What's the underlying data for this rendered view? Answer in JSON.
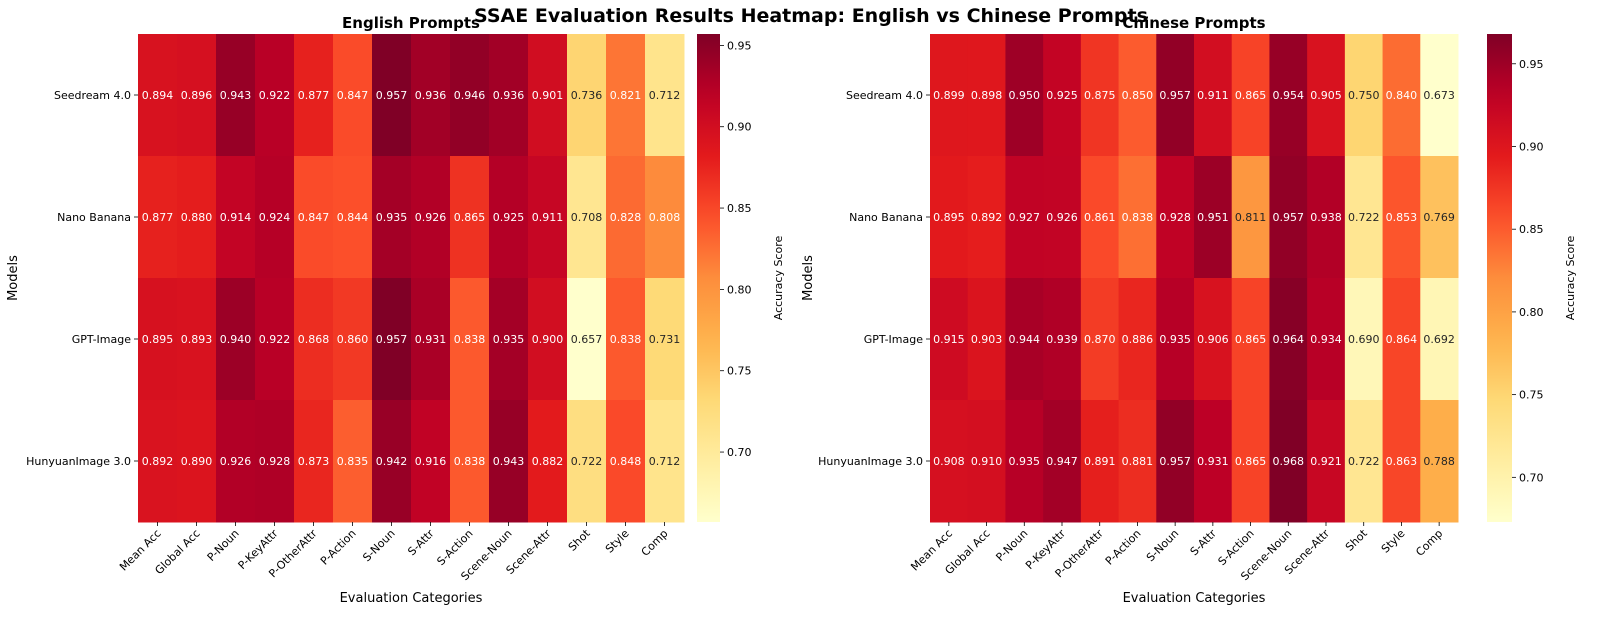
{
  "chart_data": {
    "type": "heatmap",
    "title": "SSAE Evaluation Results Heatmap: English vs Chinese Prompts",
    "colormap": [
      "#ffffcc",
      "#ffeda0",
      "#fed976",
      "#feb24c",
      "#fd8d3c",
      "#fc4e2a",
      "#e31a1c",
      "#bd0026",
      "#800026"
    ],
    "panels": [
      {
        "title": "English Prompts",
        "xlabel": "Evaluation Categories",
        "ylabel": "Models",
        "colorbar_label": "Accuracy Score",
        "vmin": 0.657,
        "vmax": 0.957,
        "colorbar_ticks": [
          "0.70",
          "0.75",
          "0.80",
          "0.85",
          "0.90",
          "0.95"
        ],
        "categories": [
          "Mean Acc",
          "Global Acc",
          "P-Noun",
          "P-KeyAttr",
          "P-OtherAttr",
          "P-Action",
          "S-Noun",
          "S-Attr",
          "S-Action",
          "Scene-Noun",
          "Scene-Attr",
          "Shot",
          "Style",
          "Comp"
        ],
        "models": [
          "Seedream 4.0",
          "Nano Banana",
          "GPT-Image",
          "HunyuanImage 3.0"
        ],
        "values": [
          [
            0.894,
            0.896,
            0.943,
            0.922,
            0.877,
            0.847,
            0.957,
            0.936,
            0.946,
            0.936,
            0.901,
            0.736,
            0.821,
            0.712
          ],
          [
            0.877,
            0.88,
            0.914,
            0.924,
            0.847,
            0.844,
            0.935,
            0.926,
            0.865,
            0.925,
            0.911,
            0.708,
            0.828,
            0.808
          ],
          [
            0.895,
            0.893,
            0.94,
            0.922,
            0.868,
            0.86,
            0.957,
            0.931,
            0.838,
            0.935,
            0.9,
            0.657,
            0.838,
            0.731
          ],
          [
            0.892,
            0.89,
            0.926,
            0.928,
            0.873,
            0.835,
            0.942,
            0.916,
            0.838,
            0.943,
            0.882,
            0.722,
            0.848,
            0.712
          ]
        ]
      },
      {
        "title": "Chinese Prompts",
        "xlabel": "Evaluation Categories",
        "ylabel": "Models",
        "colorbar_label": "Accuracy Score",
        "vmin": 0.673,
        "vmax": 0.968,
        "colorbar_ticks": [
          "0.70",
          "0.75",
          "0.80",
          "0.85",
          "0.90",
          "0.95"
        ],
        "categories": [
          "Mean Acc",
          "Global Acc",
          "P-Noun",
          "P-KeyAttr",
          "P-OtherAttr",
          "P-Action",
          "S-Noun",
          "S-Attr",
          "S-Action",
          "Scene-Noun",
          "Scene-Attr",
          "Shot",
          "Style",
          "Comp"
        ],
        "models": [
          "Seedream 4.0",
          "Nano Banana",
          "GPT-Image",
          "HunyuanImage 3.0"
        ],
        "values": [
          [
            0.899,
            0.898,
            0.95,
            0.925,
            0.875,
            0.85,
            0.957,
            0.911,
            0.865,
            0.954,
            0.905,
            0.75,
            0.84,
            0.673
          ],
          [
            0.895,
            0.892,
            0.927,
            0.926,
            0.861,
            0.838,
            0.928,
            0.951,
            0.811,
            0.957,
            0.938,
            0.722,
            0.853,
            0.769
          ],
          [
            0.915,
            0.903,
            0.944,
            0.939,
            0.87,
            0.886,
            0.935,
            0.906,
            0.865,
            0.964,
            0.934,
            0.69,
            0.864,
            0.692
          ],
          [
            0.908,
            0.91,
            0.935,
            0.947,
            0.891,
            0.881,
            0.957,
            0.931,
            0.865,
            0.968,
            0.921,
            0.722,
            0.863,
            0.788
          ]
        ]
      }
    ]
  }
}
